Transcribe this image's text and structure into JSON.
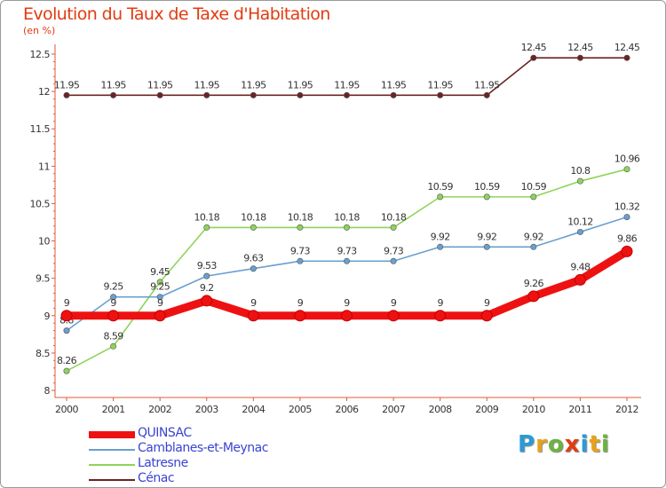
{
  "title": "Evolution du Taux de Taxe d'Habitation",
  "unit": "(en %)",
  "logo": {
    "letters": [
      "P",
      "r",
      "o",
      "x",
      "i",
      "t",
      "i"
    ],
    "colors": [
      "#2a9ad8",
      "#e8a21a",
      "#6db33f",
      "#e23b0f",
      "#2a9ad8",
      "#e8a21a",
      "#6db33f"
    ]
  },
  "chart_data": {
    "type": "line",
    "title": "Evolution du Taux de Taxe d'Habitation",
    "ylabel": "(en %)",
    "x": [
      "2000",
      "2001",
      "2002",
      "2003",
      "2004",
      "2005",
      "2006",
      "2007",
      "2008",
      "2009",
      "2010",
      "2011",
      "2012"
    ],
    "ylim": [
      8,
      12.5
    ],
    "yticks": [
      "8",
      "8.5",
      "9",
      "9.5",
      "10",
      "10.5",
      "11",
      "11.5",
      "12",
      "12.5"
    ],
    "grid": false,
    "legend_position": "bottom-left",
    "series": [
      {
        "name": "Cénac",
        "color": "#6b2424",
        "values": [
          11.95,
          11.95,
          11.95,
          11.95,
          11.95,
          11.95,
          11.95,
          11.95,
          11.95,
          11.95,
          12.45,
          12.45,
          12.45
        ],
        "labels": [
          "11.95",
          "11.95",
          "11.95",
          "11.95",
          "11.95",
          "11.95",
          "11.95",
          "11.95",
          "11.95",
          "11.95",
          "12.45",
          "12.45",
          "12.45"
        ]
      },
      {
        "name": "Latresne",
        "color": "#8fd45a",
        "values": [
          8.26,
          8.59,
          9.45,
          10.18,
          10.18,
          10.18,
          10.18,
          10.18,
          10.59,
          10.59,
          10.59,
          10.8,
          10.96
        ],
        "labels": [
          "8.26",
          "8.59",
          "9.45",
          "10.18",
          "10.18",
          "10.18",
          "10.18",
          "10.18",
          "10.59",
          "10.59",
          "10.59",
          "10.8",
          "10.96"
        ]
      },
      {
        "name": "Camblanes-et-Meynac",
        "color": "#6a9fcf",
        "values": [
          8.8,
          9.25,
          9.25,
          9.53,
          9.63,
          9.73,
          9.73,
          9.73,
          9.92,
          9.92,
          9.92,
          10.12,
          10.32
        ],
        "labels": [
          "8.8",
          "9.25",
          "9.25",
          "9.53",
          "9.63",
          "9.73",
          "9.73",
          "9.73",
          "9.92",
          "9.92",
          "9.92",
          "10.12",
          "10.32"
        ]
      },
      {
        "name": "QUINSAC",
        "color": "#ee1111",
        "values": [
          9,
          9,
          9,
          9.2,
          9,
          9,
          9,
          9,
          9,
          9,
          9.26,
          9.48,
          9.86
        ],
        "labels": [
          "9",
          "9",
          "9",
          "9.2",
          "9",
          "9",
          "9",
          "9",
          "9",
          "9",
          "9.26",
          "9.48",
          "9.86"
        ]
      }
    ],
    "legend": [
      "QUINSAC",
      "Camblanes-et-Meynac",
      "Latresne",
      "Cénac"
    ]
  }
}
